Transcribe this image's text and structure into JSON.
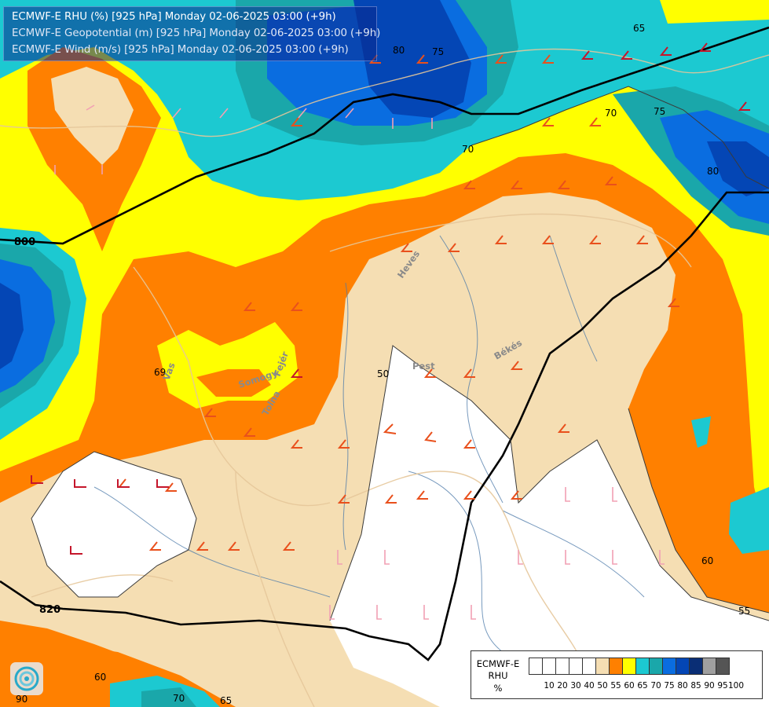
{
  "title": {
    "line1": "ECMWF-E RHU (%) [925 hPa] Monday 02-06-2025 03:00 (+9h)",
    "line2": "ECMWF-E Geopotential (m) [925 hPa] Monday 02-06-2025 03:00 (+9h)",
    "line3": "ECMWF-E Wind (m/s) [925 hPa] Monday 02-06-2025 03:00 (+9h)"
  },
  "legend": {
    "name_line1": "ECMWF-E",
    "name_line2": "RHU",
    "name_line3": "%",
    "bins": [
      {
        "label": "10",
        "color": "#ffffff"
      },
      {
        "label": "20",
        "color": "#ffffff"
      },
      {
        "label": "30",
        "color": "#ffffff"
      },
      {
        "label": "40",
        "color": "#ffffff"
      },
      {
        "label": "50",
        "color": "#ffffff"
      },
      {
        "label": "55",
        "color": "#f5deb3"
      },
      {
        "label": "60",
        "color": "#ff8000"
      },
      {
        "label": "65",
        "color": "#ffff00"
      },
      {
        "label": "70",
        "color": "#1cc9d1"
      },
      {
        "label": "75",
        "color": "#1aa7aa"
      },
      {
        "label": "80",
        "color": "#0a6de0"
      },
      {
        "label": "85",
        "color": "#0446b5"
      },
      {
        "label": "90",
        "color": "#0a2e75"
      },
      {
        "label": "95",
        "color": "#a0a0a0"
      },
      {
        "label": "100",
        "color": "#555555"
      }
    ]
  },
  "geopotential_labels": [
    "800",
    "820"
  ],
  "rhu_contour_labels": [
    "50",
    "55",
    "60",
    "60",
    "65",
    "65",
    "69",
    "70",
    "70",
    "70",
    "75",
    "75",
    "80",
    "80",
    "90"
  ],
  "place_labels": [
    "Pest",
    "Békés",
    "Heves",
    "Somogy",
    "Tolna",
    "Fejér",
    "Vas"
  ],
  "colors": {
    "rhu_55": "#f5deb3",
    "rhu_60": "#ff8000",
    "rhu_65": "#ffff00",
    "rhu_70": "#1cc9d1",
    "rhu_75": "#1aa7aa",
    "rhu_80": "#0a6de0",
    "rhu_85": "#0446b5",
    "rhu_90": "#0a2e75",
    "border": "#e6c79a",
    "river": "#4a78a8",
    "isoline": "#000000"
  },
  "logo": "ecmwf-swirl-logo"
}
